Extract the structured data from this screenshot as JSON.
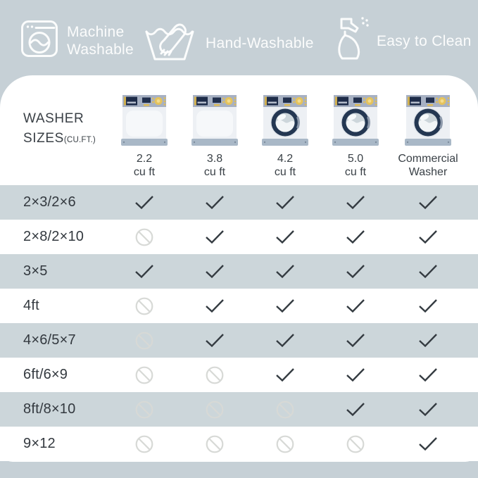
{
  "features": [
    {
      "name": "machine-washable",
      "line1": "Machine",
      "line2": "Washable"
    },
    {
      "name": "hand-washable",
      "line1": "Hand-Washable",
      "line2": ""
    },
    {
      "name": "easy-to-clean",
      "line1": "Easy to Clean",
      "line2": ""
    }
  ],
  "chart_data": {
    "type": "table",
    "corner_header": {
      "line1": "WASHER",
      "line2": "SIZES",
      "suffix": "(CU.FT.)"
    },
    "columns": [
      {
        "size": "2.2",
        "unit": "cu ft",
        "washer": "plain-front"
      },
      {
        "size": "3.8",
        "unit": "cu ft",
        "washer": "plain-front"
      },
      {
        "size": "4.2",
        "unit": "cu ft",
        "washer": "front-load"
      },
      {
        "size": "5.0",
        "unit": "cu ft",
        "washer": "front-load"
      },
      {
        "size": "Commercial",
        "unit": "Washer",
        "washer": "front-load"
      }
    ],
    "rows": [
      {
        "label": "2×3/2×6",
        "cells": [
          "check",
          "check",
          "check",
          "check",
          "check"
        ]
      },
      {
        "label": "2×8/2×10",
        "cells": [
          "no",
          "check",
          "check",
          "check",
          "check"
        ]
      },
      {
        "label": "3×5",
        "cells": [
          "check",
          "check",
          "check",
          "check",
          "check"
        ]
      },
      {
        "label": "4ft",
        "cells": [
          "no",
          "check",
          "check",
          "check",
          "check"
        ]
      },
      {
        "label": "4×6/5×7",
        "cells": [
          "no",
          "check",
          "check",
          "check",
          "check"
        ]
      },
      {
        "label": "6ft/6×9",
        "cells": [
          "no",
          "no",
          "check",
          "check",
          "check"
        ]
      },
      {
        "label": "8ft/8×10",
        "cells": [
          "no",
          "no",
          "no",
          "check",
          "check"
        ]
      },
      {
        "label": "9×12",
        "cells": [
          "no",
          "no",
          "no",
          "no",
          "check"
        ]
      }
    ]
  },
  "colors": {
    "page_background": "#c6d0d6",
    "card_background": "#ffffff",
    "alt_row": "#ccd6da",
    "dark_text": "#33393f",
    "check_mark": "#343b41",
    "no_symbol": "#d7d9d6",
    "washer_navy": "#22304d",
    "washer_panel": "#a7b1c3",
    "washer_gold": "#e2bd55",
    "washer_base": "#a9b8c7"
  }
}
